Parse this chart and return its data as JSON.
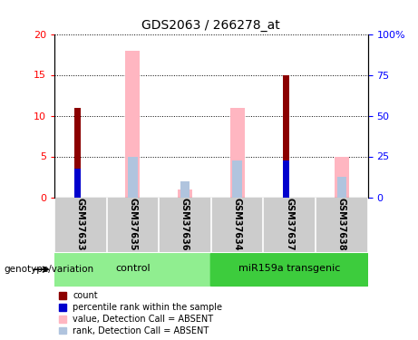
{
  "title": "GDS2063 / 266278_at",
  "samples": [
    "GSM37633",
    "GSM37635",
    "GSM37636",
    "GSM37634",
    "GSM37637",
    "GSM37638"
  ],
  "groups": [
    {
      "label": "control",
      "color": "#90EE90",
      "start": 0,
      "end": 3
    },
    {
      "label": "miR159a transgenic",
      "color": "#3DCC3D",
      "start": 3,
      "end": 6
    }
  ],
  "count_values": [
    11,
    0,
    0,
    0,
    15,
    0
  ],
  "percentile_rank_values": [
    3.5,
    0,
    0,
    0,
    4.5,
    0
  ],
  "value_absent": [
    0,
    18,
    1,
    11,
    0,
    5
  ],
  "rank_absent": [
    0,
    5,
    2,
    4.5,
    0,
    2.5
  ],
  "ylim_left": [
    0,
    20
  ],
  "ylim_right": [
    0,
    100
  ],
  "yticks_left": [
    0,
    5,
    10,
    15,
    20
  ],
  "yticks_right": [
    0,
    25,
    50,
    75,
    100
  ],
  "ytick_labels_right": [
    "0",
    "25",
    "50",
    "75",
    "100%"
  ],
  "color_count": "#8B0000",
  "color_percentile": "#0000CD",
  "color_value_absent": "#FFB6C1",
  "color_rank_absent": "#B0C4DE",
  "legend_items": [
    {
      "label": "count",
      "color": "#8B0000"
    },
    {
      "label": "percentile rank within the sample",
      "color": "#0000CD"
    },
    {
      "label": "value, Detection Call = ABSENT",
      "color": "#FFB6C1"
    },
    {
      "label": "rank, Detection Call = ABSENT",
      "color": "#B0C4DE"
    }
  ],
  "genotype_label": "genotype/variation",
  "background_plot": "#FFFFFF",
  "background_sample": "#CCCCCC"
}
